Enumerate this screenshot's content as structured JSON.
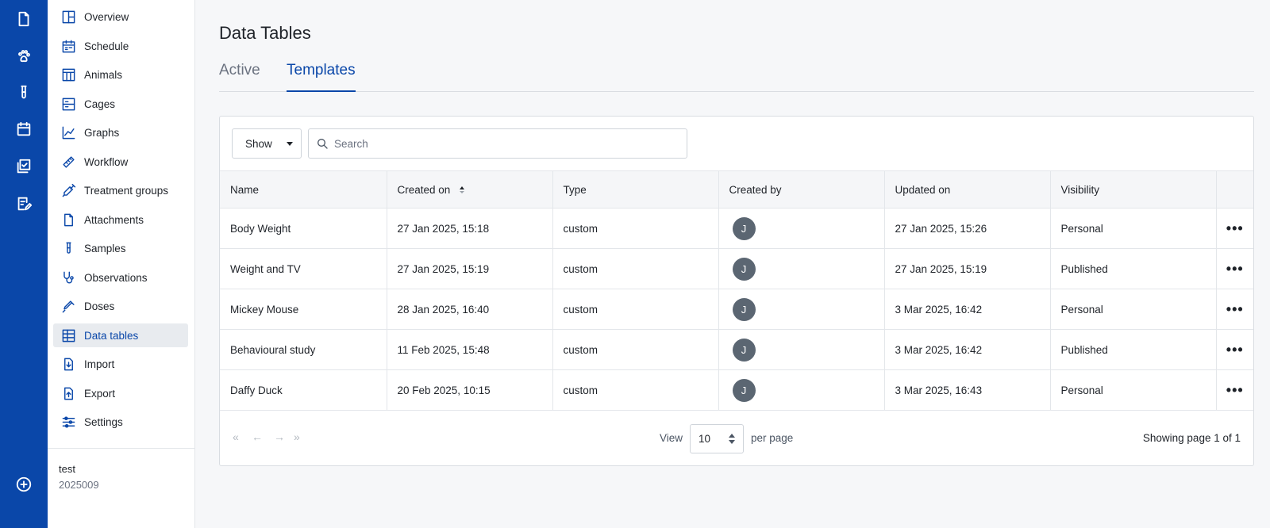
{
  "rail": {
    "items": [
      {
        "icon": "document-icon"
      },
      {
        "icon": "paw-icon"
      },
      {
        "icon": "test-tube-icon"
      },
      {
        "icon": "calendar-icon"
      },
      {
        "icon": "checklist-icon"
      },
      {
        "icon": "edit-note-icon"
      }
    ],
    "bottom": [
      {
        "icon": "add-circle-icon"
      }
    ]
  },
  "nav": {
    "items": [
      {
        "label": "Overview",
        "icon": "overview-icon"
      },
      {
        "label": "Schedule",
        "icon": "schedule-icon"
      },
      {
        "label": "Animals",
        "icon": "animals-table-icon"
      },
      {
        "label": "Cages",
        "icon": "cages-icon"
      },
      {
        "label": "Graphs",
        "icon": "graph-icon"
      },
      {
        "label": "Workflow",
        "icon": "workflow-icon"
      },
      {
        "label": "Treatment groups",
        "icon": "syringe-icon"
      },
      {
        "label": "Attachments",
        "icon": "attachment-icon"
      },
      {
        "label": "Samples",
        "icon": "test-tube-icon"
      },
      {
        "label": "Observations",
        "icon": "stethoscope-icon"
      },
      {
        "label": "Doses",
        "icon": "dropper-icon"
      },
      {
        "label": "Data tables",
        "icon": "data-table-icon",
        "active": true
      },
      {
        "label": "Import",
        "icon": "import-icon"
      },
      {
        "label": "Export",
        "icon": "export-icon"
      },
      {
        "label": "Settings",
        "icon": "settings-sliders-icon"
      }
    ],
    "project_name": "test",
    "project_code": "2025009"
  },
  "page": {
    "title": "Data Tables",
    "tabs": [
      {
        "label": "Active",
        "active": false
      },
      {
        "label": "Templates",
        "active": true
      }
    ]
  },
  "toolbar": {
    "show_label": "Show",
    "search_placeholder": "Search"
  },
  "table": {
    "columns": [
      "Name",
      "Created on",
      "Type",
      "Created by",
      "Updated on",
      "Visibility"
    ],
    "rows": [
      {
        "name": "Body Weight",
        "created_on": "27 Jan 2025, 15:18",
        "type": "custom",
        "created_by": "J",
        "updated_on": "27 Jan 2025, 15:26",
        "visibility": "Personal"
      },
      {
        "name": "Weight and TV",
        "created_on": "27 Jan 2025, 15:19",
        "type": "custom",
        "created_by": "J",
        "updated_on": "27 Jan 2025, 15:19",
        "visibility": "Published"
      },
      {
        "name": "Mickey Mouse",
        "created_on": "28 Jan 2025, 16:40",
        "type": "custom",
        "created_by": "J",
        "updated_on": "3 Mar 2025, 16:42",
        "visibility": "Personal"
      },
      {
        "name": "Behavioural study",
        "created_on": "11 Feb 2025, 15:48",
        "type": "custom",
        "created_by": "J",
        "updated_on": "3 Mar 2025, 16:42",
        "visibility": "Published"
      },
      {
        "name": "Daffy Duck",
        "created_on": "20 Feb 2025, 10:15",
        "type": "custom",
        "created_by": "J",
        "updated_on": "3 Mar 2025, 16:43",
        "visibility": "Personal"
      }
    ],
    "more_label": "•••"
  },
  "pager": {
    "first": "«",
    "prev": "←",
    "next": "→",
    "last": "»",
    "view_label": "View",
    "per_page_value": "10",
    "per_page_label": "per page",
    "showing": "Showing page 1 of 1"
  },
  "colors": {
    "brand": "#0a47a9",
    "avatar": "#5b6672"
  }
}
